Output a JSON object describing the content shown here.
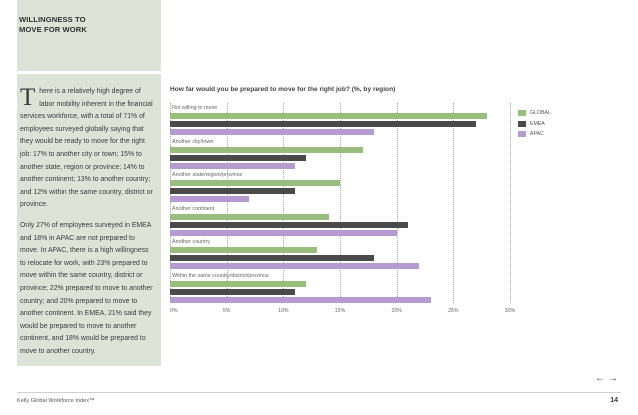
{
  "section": {
    "title": "WILLINGNESS TO\nMOVE FOR WORK"
  },
  "body": {
    "dropcap": "T",
    "para1": "here is a relatively high degree of labor mobility inherent in the financial services workforce, with a total of 71% of employees surveyed globally saying that they would be ready to move for the right job: 17% to another city or town; 15% to another state, region or province; 14% to another continent; 13% to another country; and 12% within the same country, district or province.",
    "para2": "Only 27% of employees surveyed in EMEA and 18% in APAC are not prepared to move. In APAC, there is a high willingness to relocate for work, with 23% prepared to move within the same country, district or province; 22% prepared to move to another country; and 20% prepared to move to another continent. In EMEA, 21% said they would be prepared to move to another continent, and 18% would be prepared to move to another country."
  },
  "chart_data": {
    "type": "bar",
    "orientation": "horizontal",
    "title": "How far would you be prepared to move for the right job? (%, by region)",
    "categories": [
      "Not willing to move",
      "Another city/town",
      "Another state/region/province",
      "Another continent",
      "Another country",
      "Within the same country/district/province"
    ],
    "series": [
      {
        "name": "GLOBAL",
        "color": "#99bd7c",
        "values": [
          28,
          17,
          15,
          14,
          13,
          12
        ]
      },
      {
        "name": "EMEA",
        "color": "#4a4a4a",
        "values": [
          27,
          12,
          11,
          21,
          18,
          11
        ]
      },
      {
        "name": "APAC",
        "color": "#b69bd0",
        "values": [
          18,
          11,
          7,
          20,
          22,
          23
        ]
      }
    ],
    "ticks": [
      "0%",
      "5%",
      "10%",
      "15%",
      "20%",
      "25%",
      "30%"
    ],
    "xlim": [
      0,
      30
    ],
    "legend": "top-right",
    "grid": true
  },
  "footer": {
    "left": "Kelly Global Workforce Index™",
    "page": "14",
    "prev_arrow": "←",
    "next_arrow": "→"
  }
}
